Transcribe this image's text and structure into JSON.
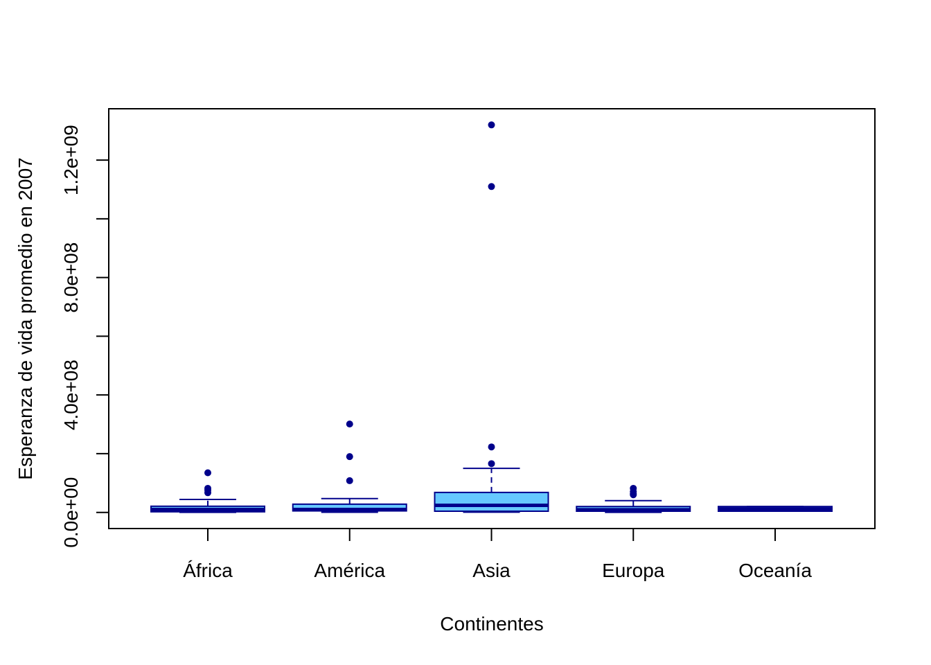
{
  "chart_data": {
    "type": "boxplot",
    "title": "",
    "xlabel": "Continentes",
    "ylabel": "Esperanza de vida promedio en 2007",
    "categories": [
      "África",
      "América",
      "Asia",
      "Europa",
      "Oceanía"
    ],
    "y_ticks": [
      0,
      200000000,
      400000000,
      600000000,
      800000000,
      1000000000,
      1200000000
    ],
    "y_tick_labels": [
      "0.0e+00",
      "",
      "4.0e+08",
      "",
      "8.0e+08",
      "",
      "1.2e+09"
    ],
    "ylim": [
      -55000000,
      1375000000
    ],
    "grid": false,
    "legend": "none",
    "colors": {
      "box_fill": "#66c8ff",
      "box_border": "#00008b",
      "outlier": "#00008b",
      "axis": "#000000"
    },
    "boxes": [
      {
        "category": "África",
        "min": 200000,
        "q1": 2000000,
        "median": 10000000,
        "q3": 21000000,
        "max": 44000000,
        "outliers": [
          67000000,
          76000000,
          82000000,
          135000000
        ]
      },
      {
        "category": "América",
        "min": 500000,
        "q1": 5000000,
        "median": 10000000,
        "q3": 28000000,
        "max": 47000000,
        "outliers": [
          108000000,
          190000000,
          301000000
        ]
      },
      {
        "category": "Asia",
        "min": 700000,
        "q1": 4000000,
        "median": 24000000,
        "q3": 68000000,
        "max": 150000000,
        "outliers": [
          166000000,
          223000000,
          1110000000,
          1320000000
        ]
      },
      {
        "category": "Europa",
        "min": 300000,
        "q1": 4000000,
        "median": 9000000,
        "q3": 20000000,
        "max": 40000000,
        "outliers": [
          60000000,
          64000000,
          71000000,
          82000000
        ]
      },
      {
        "category": "Oceanía",
        "min": 4000000,
        "q1": 4000000,
        "median": 12000000,
        "q3": 20000000,
        "max": 20000000,
        "outliers": []
      }
    ]
  }
}
